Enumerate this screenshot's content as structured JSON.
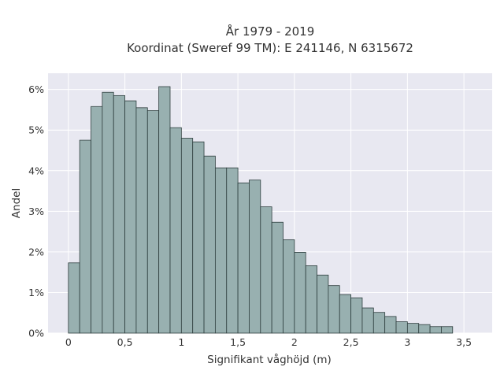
{
  "chart_data": {
    "type": "bar",
    "title": "År 1979 - 2019",
    "subtitle": "Koordinat (Sweref 99 TM): E 241146, N 6315672",
    "xlabel": "Signifikant våghöjd (m)",
    "ylabel": "Andel",
    "bin_width": 0.1,
    "bin_starts": [
      0.0,
      0.1,
      0.2,
      0.3,
      0.4,
      0.5,
      0.6,
      0.7,
      0.8,
      0.9,
      1.0,
      1.1,
      1.2,
      1.3,
      1.4,
      1.5,
      1.6,
      1.7,
      1.8,
      1.9,
      2.0,
      2.1,
      2.2,
      2.3,
      2.4,
      2.5,
      2.6,
      2.7,
      2.8,
      2.9,
      3.0,
      3.1,
      3.2,
      3.3
    ],
    "values": [
      1.73,
      4.75,
      5.58,
      5.93,
      5.85,
      5.72,
      5.55,
      5.48,
      6.07,
      5.06,
      4.8,
      4.71,
      4.36,
      4.07,
      4.07,
      3.7,
      3.77,
      3.11,
      2.73,
      2.3,
      1.99,
      1.66,
      1.43,
      1.17,
      0.95,
      0.87,
      0.62,
      0.51,
      0.41,
      0.28,
      0.24,
      0.21,
      0.16,
      0.16
    ],
    "value_unit": "%",
    "xlim": [
      -0.18,
      3.75
    ],
    "ylim": [
      0,
      6.4
    ],
    "xticks": [
      0,
      0.5,
      1,
      1.5,
      2,
      2.5,
      3,
      3.5
    ],
    "xtick_labels": [
      "0",
      "0,5",
      "1",
      "1,5",
      "2",
      "2,5",
      "3",
      "3,5"
    ],
    "yticks": [
      0,
      1,
      2,
      3,
      4,
      5,
      6
    ],
    "ytick_labels": [
      "0%",
      "1%",
      "2%",
      "3%",
      "4%",
      "5%",
      "6%"
    ],
    "grid": true,
    "colors": {
      "plot_background": "#e8e8f1",
      "grid": "#ffffff",
      "bar_fill": "#98b0b0",
      "bar_edge": "#2e3e3e",
      "text": "#333333"
    }
  }
}
